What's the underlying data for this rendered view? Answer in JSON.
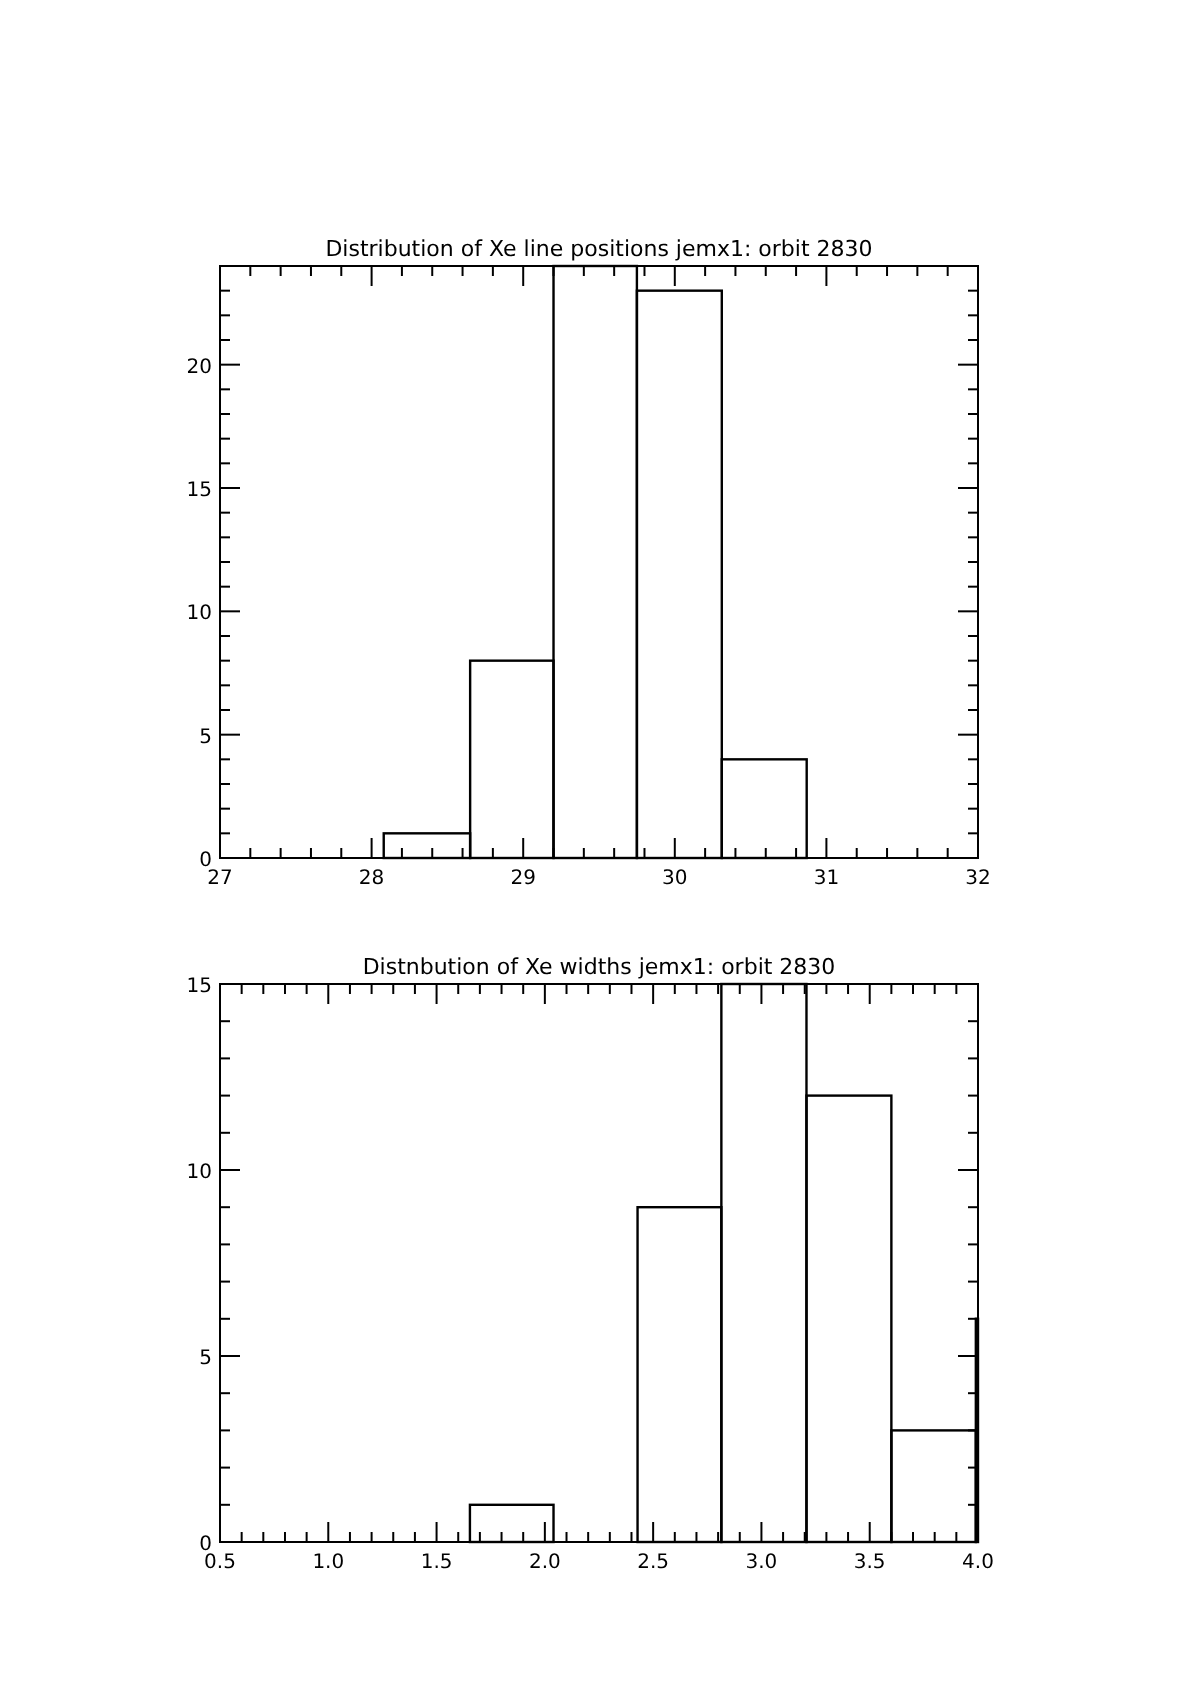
{
  "chart_data": [
    {
      "type": "histogram",
      "title": "Distribution of Xe line positions jemx1: orbit 2830",
      "color": "#000000",
      "bins": [
        28.08,
        28.65,
        29.2,
        29.75,
        30.31,
        30.87
      ],
      "values": [
        1,
        8,
        24,
        23,
        4
      ],
      "xlim": [
        27,
        32
      ],
      "ylim": [
        0,
        24
      ],
      "xticks": [
        27,
        {
          "value": 27.2,
          "label": null
        },
        {
          "value": 27.4,
          "label": null
        },
        {
          "value": 27.6,
          "label": null
        },
        {
          "value": 27.8,
          "label": null
        },
        28,
        {
          "value": 28.2,
          "label": null
        },
        {
          "value": 28.4,
          "label": null
        },
        {
          "value": 28.6,
          "label": null
        },
        {
          "value": 28.8,
          "label": null
        },
        29,
        {
          "value": 29.2,
          "label": null
        },
        {
          "value": 29.4,
          "label": null
        },
        {
          "value": 29.6,
          "label": null
        },
        {
          "value": 29.8,
          "label": null
        },
        30,
        {
          "value": 30.2,
          "label": null
        },
        {
          "value": 30.4,
          "label": null
        },
        {
          "value": 30.6,
          "label": null
        },
        {
          "value": 30.8,
          "label": null
        },
        31,
        {
          "value": 31.2,
          "label": null
        },
        {
          "value": 31.4,
          "label": null
        },
        {
          "value": 31.6,
          "label": null
        },
        {
          "value": 31.8,
          "label": null
        },
        32
      ],
      "yticks": [
        0,
        {
          "value": 1,
          "label": null
        },
        {
          "value": 2,
          "label": null
        },
        {
          "value": 3,
          "label": null
        },
        {
          "value": 4,
          "label": null
        },
        5,
        {
          "value": 6,
          "label": null
        },
        {
          "value": 7,
          "label": null
        },
        {
          "value": 8,
          "label": null
        },
        {
          "value": 9,
          "label": null
        },
        10,
        {
          "value": 11,
          "label": null
        },
        {
          "value": 12,
          "label": null
        },
        {
          "value": 13,
          "label": null
        },
        {
          "value": 14,
          "label": null
        },
        15,
        {
          "value": 16,
          "label": null
        },
        {
          "value": 17,
          "label": null
        },
        {
          "value": 18,
          "label": null
        },
        {
          "value": 19,
          "label": null
        },
        20,
        {
          "value": 21,
          "label": null
        },
        {
          "value": 22,
          "label": null
        },
        {
          "value": 23,
          "label": null
        },
        {
          "value": 24,
          "label": null
        }
      ]
    },
    {
      "type": "histogram",
      "title": "Distnbution of Xe widths jemx1: orbit 2830",
      "color": "#000000",
      "bins": [
        1.654,
        2.04,
        2.428,
        2.815,
        3.208,
        3.6,
        3.99,
        4.0
      ],
      "values": [
        1,
        0,
        9,
        15,
        12,
        3,
        6
      ],
      "xlim": [
        0.5,
        4.0
      ],
      "ylim": [
        0,
        15
      ],
      "xticks": [
        0.5,
        {
          "value": 0.6,
          "label": null
        },
        {
          "value": 0.7,
          "label": null
        },
        {
          "value": 0.8,
          "label": null
        },
        {
          "value": 0.9,
          "label": null
        },
        {
          "value": 1,
          "label": "1.0"
        },
        {
          "value": 1.1,
          "label": null
        },
        {
          "value": 1.2,
          "label": null
        },
        {
          "value": 1.3,
          "label": null
        },
        {
          "value": 1.4,
          "label": null
        },
        1.5,
        {
          "value": 1.6,
          "label": null
        },
        {
          "value": 1.7,
          "label": null
        },
        {
          "value": 1.8,
          "label": null
        },
        {
          "value": 1.9,
          "label": null
        },
        {
          "value": 2,
          "label": "2.0"
        },
        {
          "value": 2.1,
          "label": null
        },
        {
          "value": 2.2,
          "label": null
        },
        {
          "value": 2.3,
          "label": null
        },
        {
          "value": 2.4,
          "label": null
        },
        2.5,
        {
          "value": 2.6,
          "label": null
        },
        {
          "value": 2.7,
          "label": null
        },
        {
          "value": 2.8,
          "label": null
        },
        {
          "value": 2.9,
          "label": null
        },
        {
          "value": 3,
          "label": "3.0"
        },
        {
          "value": 3.1,
          "label": null
        },
        {
          "value": 3.2,
          "label": null
        },
        {
          "value": 3.3,
          "label": null
        },
        {
          "value": 3.4,
          "label": null
        },
        3.5,
        {
          "value": 3.6,
          "label": null
        },
        {
          "value": 3.7,
          "label": null
        },
        {
          "value": 3.8,
          "label": null
        },
        {
          "value": 3.9,
          "label": null
        },
        {
          "value": 4,
          "label": "4.0"
        }
      ],
      "yticks": [
        0,
        {
          "value": 1,
          "label": null
        },
        {
          "value": 2,
          "label": null
        },
        {
          "value": 3,
          "label": null
        },
        {
          "value": 4,
          "label": null
        },
        5,
        {
          "value": 6,
          "label": null
        },
        {
          "value": 7,
          "label": null
        },
        {
          "value": 8,
          "label": null
        },
        {
          "value": 9,
          "label": null
        },
        10,
        {
          "value": 11,
          "label": null
        },
        {
          "value": 12,
          "label": null
        },
        {
          "value": 13,
          "label": null
        },
        {
          "value": 14,
          "label": null
        },
        15
      ]
    }
  ]
}
